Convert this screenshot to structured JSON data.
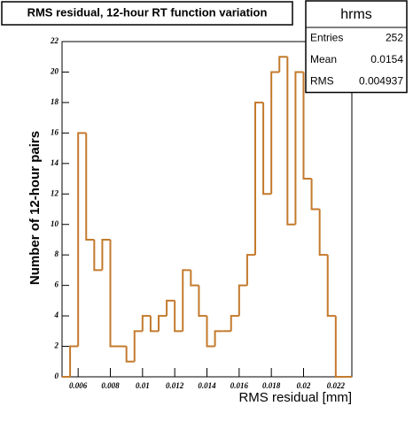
{
  "chart_data": {
    "type": "histogram",
    "title": "RMS residual, 12-hour RT function variation",
    "x_label": "RMS residual [mm]",
    "y_label": "Number of 12-hour pairs",
    "bins": [
      0.005,
      0.0055,
      0.006,
      0.0065,
      0.007,
      0.0075,
      0.008,
      0.0085,
      0.009,
      0.0095,
      0.01,
      0.0105,
      0.011,
      0.0115,
      0.012,
      0.0125,
      0.013,
      0.0135,
      0.014,
      0.0145,
      0.015,
      0.0155,
      0.016,
      0.0165,
      0.017,
      0.0175,
      0.018,
      0.0185,
      0.019,
      0.0195,
      0.02,
      0.0205,
      0.021,
      0.0215,
      0.022,
      0.0225,
      0.023
    ],
    "values": [
      0,
      2,
      16,
      9,
      7,
      9,
      2,
      2,
      1,
      3,
      4,
      3,
      4,
      5,
      3,
      7,
      6,
      4,
      2,
      3,
      3,
      4,
      6,
      8,
      18,
      12,
      20,
      21,
      10,
      20,
      13,
      11,
      8,
      4,
      0,
      0
    ],
    "color": "#c47a2c",
    "xlim": [
      0.005,
      0.023
    ],
    "ylim": [
      0,
      22
    ],
    "xticks": [
      0.006,
      0.008,
      0.01,
      0.012,
      0.014,
      0.016,
      0.018,
      0.02,
      0.022
    ],
    "yticks": [
      0,
      2,
      4,
      6,
      8,
      10,
      12,
      14,
      16,
      18,
      20,
      22
    ],
    "stats": {
      "title": "hrms",
      "rows": [
        {
          "label": "Entries",
          "value": 252
        },
        {
          "label": "Mean",
          "value": 0.0154
        },
        {
          "label": "RMS",
          "value": 0.004937
        }
      ]
    }
  }
}
